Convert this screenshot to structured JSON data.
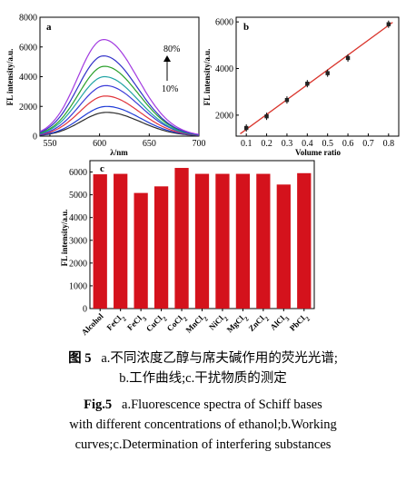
{
  "panels": [
    {
      "label": "a",
      "type": "line",
      "xlabel": "λ/nm",
      "ylabel": "FL intensity/a.u.",
      "xlim": [
        540,
        700
      ],
      "ylim": [
        0,
        8000
      ],
      "xticks": [
        "550",
        "600",
        "650",
        "700"
      ],
      "yticks": [
        "0",
        "2000",
        "4000",
        "6000",
        "8000"
      ],
      "annotation_top": "80%",
      "annotation_bottom": "10%",
      "series": [
        {
          "color": "#2b2b2b",
          "peak_x": 607,
          "peak_y": 1600
        },
        {
          "color": "#1f3bd6",
          "peak_x": 607,
          "peak_y": 2000
        },
        {
          "color": "#e0343a",
          "peak_x": 606,
          "peak_y": 2700
        },
        {
          "color": "#3a3ad8",
          "peak_x": 606,
          "peak_y": 3400
        },
        {
          "color": "#1fa3a3",
          "peak_x": 605,
          "peak_y": 4000
        },
        {
          "color": "#2aa02a",
          "peak_x": 605,
          "peak_y": 4700
        },
        {
          "color": "#3030c8",
          "peak_x": 604,
          "peak_y": 5400
        },
        {
          "color": "#a23ae0",
          "peak_x": 604,
          "peak_y": 6500
        }
      ]
    },
    {
      "label": "b",
      "type": "scatter",
      "xlabel": "Volume ratio",
      "ylabel": "FL intensity/a.u.",
      "xlim": [
        0.05,
        0.85
      ],
      "ylim": [
        1100,
        6200
      ],
      "xticks": [
        "0.1",
        "0.2",
        "0.3",
        "0.4",
        "0.5",
        "0.6",
        "0.7",
        "0.8"
      ],
      "yticks": [
        "2000",
        "4000",
        "6000"
      ],
      "x": [
        0.1,
        0.2,
        0.3,
        0.4,
        0.5,
        0.6,
        0.8
      ],
      "y": [
        1450,
        1950,
        2650,
        3350,
        3800,
        4450,
        5900
      ],
      "fit_line": [
        [
          0.07,
          1200
        ],
        [
          0.82,
          5980
        ]
      ]
    },
    {
      "label": "c",
      "type": "bar",
      "ylabel": "FL intensity/a.u.",
      "ylim": [
        0,
        6500
      ],
      "yticks": [
        "0",
        "1000",
        "2000",
        "3000",
        "4000",
        "5000",
        "6000"
      ],
      "categories": [
        {
          "base": "Alcohol",
          "sub": ""
        },
        {
          "base": "FeCl",
          "sub": "2"
        },
        {
          "base": "FeCl",
          "sub": "3"
        },
        {
          "base": "CuCl",
          "sub": "2"
        },
        {
          "base": "CoCl",
          "sub": "2"
        },
        {
          "base": "MnCl",
          "sub": "2"
        },
        {
          "base": "NiCl",
          "sub": "2"
        },
        {
          "base": "MgCl",
          "sub": "2"
        },
        {
          "base": "ZnCl",
          "sub": "2"
        },
        {
          "base": "AlCl",
          "sub": "3"
        },
        {
          "base": "PbCl",
          "sub": "2"
        }
      ],
      "values": [
        5900,
        5920,
        5080,
        5370,
        6180,
        5920,
        5920,
        5920,
        5920,
        5450,
        5950
      ],
      "bar_color": "#d4121c"
    }
  ],
  "caption": {
    "cn_head": "图 5",
    "cn_line1": "a.不同浓度乙醇与席夫碱作用的荧光光谱;",
    "cn_line2": "b.工作曲线;c.干扰物质的测定",
    "en_head": "Fig.5",
    "en_line1": "a.Fluorescence spectra of Schiff bases",
    "en_line2": "with different concentrations of ethanol;b.Working",
    "en_line3": "curves;c.Determination of interfering substances"
  }
}
